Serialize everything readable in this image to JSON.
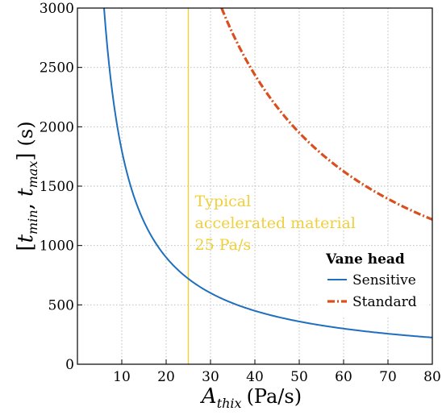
{
  "chart_data": {
    "type": "line",
    "xlabel": "A_thix (Pa/s)",
    "xlabel_parts": {
      "main": "A",
      "sub": "thix",
      "unit": "(Pa/s)"
    },
    "ylabel": "[t_min, t_max] (s)",
    "ylabel_parts": {
      "open": "[",
      "t1": "t",
      "s1": "min",
      "comma": ", ",
      "t2": "t",
      "s2": "max",
      "close": "]",
      "unit": "(s)"
    },
    "xlim": [
      0,
      80
    ],
    "ylim": [
      0,
      3000
    ],
    "xticks": [
      10,
      20,
      30,
      40,
      50,
      60,
      70,
      80
    ],
    "yticks": [
      0,
      500,
      1000,
      1500,
      2000,
      2500,
      3000
    ],
    "grid": true,
    "legend": {
      "title": "Vane head",
      "placement": "lower-right",
      "entries": [
        "Sensitive",
        "Standard"
      ]
    },
    "series": [
      {
        "name": "Sensitive",
        "color": "#1f6fbf",
        "style": "solid",
        "x": [
          6,
          8,
          10,
          12,
          15,
          18,
          20,
          25,
          30,
          35,
          40,
          45,
          50,
          55,
          60,
          65,
          70,
          75,
          80
        ],
        "y": [
          3000,
          2250,
          1800,
          1500,
          1200,
          1000,
          900,
          720,
          600,
          515,
          450,
          400,
          360,
          327,
          300,
          277,
          257,
          240,
          225
        ]
      },
      {
        "name": "Standard",
        "color": "#d9501e",
        "style": "dashdot",
        "x": [
          32.5,
          35,
          40,
          45,
          50,
          55,
          60,
          65,
          70,
          75,
          80
        ],
        "y": [
          3000,
          2785,
          2437,
          2167,
          1950,
          1773,
          1625,
          1500,
          1393,
          1300,
          1219
        ]
      }
    ],
    "annotations": [
      {
        "type": "vline",
        "x": 25,
        "color": "#f0cf3a",
        "text": [
          "Typical",
          "accelerated material",
          "25 Pa/s"
        ]
      }
    ]
  }
}
